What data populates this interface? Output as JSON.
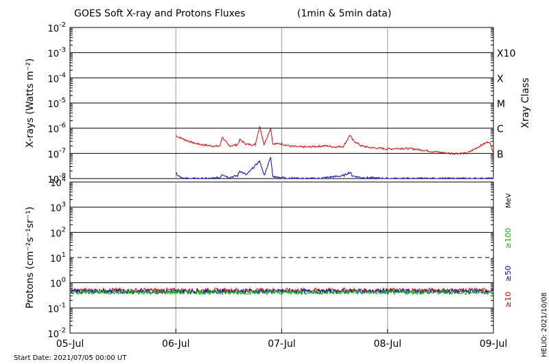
{
  "chart_data": [
    {
      "type": "line",
      "title": "GOES Soft X-ray and Protons Fluxes",
      "subtitle": "(1min & 5min data)",
      "ylabel": "X-rays (Watts m⁻²)",
      "y_scale": "log",
      "ylim": [
        1e-08,
        0.01
      ],
      "y_ticks": [
        {
          "base": "10",
          "exp": "-2"
        },
        {
          "base": "10",
          "exp": "-3"
        },
        {
          "base": "10",
          "exp": "-4"
        },
        {
          "base": "10",
          "exp": "-5"
        },
        {
          "base": "10",
          "exp": "-6"
        },
        {
          "base": "10",
          "exp": "-7"
        },
        {
          "base": "10",
          "exp": "-8"
        }
      ],
      "right_axis_label": "Xray Class",
      "classes": [
        {
          "label": "X10",
          "value": 0.001
        },
        {
          "label": "X",
          "value": 0.0001
        },
        {
          "label": "M",
          "value": 1e-05
        },
        {
          "label": "C",
          "value": 1e-06
        },
        {
          "label": "B",
          "value": 1e-07
        }
      ],
      "grid": true,
      "series": [
        {
          "color": "#dd0000",
          "x": [
            "2021-07-06T00:00",
            "2021-07-06T02:00",
            "2021-07-06T04:00",
            "2021-07-06T06:00",
            "2021-07-06T08:00",
            "2021-07-06T10:00",
            "2021-07-06T10:30",
            "2021-07-06T12:00",
            "2021-07-06T14:00",
            "2021-07-06T14:30",
            "2021-07-06T16:00",
            "2021-07-06T18:00",
            "2021-07-06T19:00",
            "2021-07-06T20:00",
            "2021-07-06T21:30",
            "2021-07-06T22:00",
            "2021-07-07T00:00",
            "2021-07-07T02:00",
            "2021-07-07T04:00",
            "2021-07-07T06:00",
            "2021-07-07T08:00",
            "2021-07-07T10:00",
            "2021-07-07T12:00",
            "2021-07-07T14:00",
            "2021-07-07T15:30",
            "2021-07-07T16:00",
            "2021-07-07T18:00",
            "2021-07-07T20:00",
            "2021-07-08T00:00",
            "2021-07-08T03:00",
            "2021-07-08T06:00",
            "2021-07-08T10:00",
            "2021-07-08T14:00",
            "2021-07-08T18:00",
            "2021-07-08T21:00",
            "2021-07-08T23:00",
            "2021-07-09T00:00"
          ],
          "values": [
            5e-07,
            3.5e-07,
            2.6e-07,
            2.2e-07,
            2e-07,
            1.9e-07,
            4.5e-07,
            2e-07,
            2.2e-07,
            3.5e-07,
            2.3e-07,
            2.2e-07,
            1.2e-06,
            2.3e-07,
            1e-06,
            2.4e-07,
            2.4e-07,
            1.9e-07,
            1.8e-07,
            1.8e-07,
            1.9e-07,
            2e-07,
            1.8e-07,
            1.9e-07,
            5.5e-07,
            3.5e-07,
            2e-07,
            1.7e-07,
            1.5e-07,
            1.6e-07,
            1.5e-07,
            1.2e-07,
            1e-07,
            1e-07,
            2e-07,
            3e-07,
            1.1e-07
          ]
        },
        {
          "color": "#0000cc",
          "x": [
            "2021-07-06T00:00",
            "2021-07-06T01:00",
            "2021-07-06T02:00",
            "2021-07-06T04:00",
            "2021-07-06T06:00",
            "2021-07-06T08:00",
            "2021-07-06T10:00",
            "2021-07-06T10:30",
            "2021-07-06T12:00",
            "2021-07-06T14:00",
            "2021-07-06T14:30",
            "2021-07-06T16:00",
            "2021-07-06T19:00",
            "2021-07-06T20:00",
            "2021-07-06T21:30",
            "2021-07-06T22:00",
            "2021-07-07T00:00",
            "2021-07-07T04:00",
            "2021-07-07T08:00",
            "2021-07-07T12:00",
            "2021-07-07T14:00",
            "2021-07-07T15:30",
            "2021-07-07T16:00",
            "2021-07-07T18:00",
            "2021-07-08T00:00",
            "2021-07-08T06:00",
            "2021-07-08T12:00",
            "2021-07-08T18:00",
            "2021-07-09T00:00"
          ],
          "values": [
            1.6e-08,
            1.2e-08,
            1e-08,
            1e-08,
            1e-08,
            1e-08,
            1.1e-08,
            1.5e-08,
            1.1e-08,
            1.3e-08,
            2e-08,
            1.4e-08,
            5e-08,
            1.3e-08,
            7e-08,
            1.2e-08,
            1.1e-08,
            1e-08,
            1e-08,
            1.2e-08,
            1.3e-08,
            1.8e-08,
            1.3e-08,
            1.1e-08,
            1e-08,
            1e-08,
            1e-08,
            1e-08,
            1e-08
          ]
        }
      ]
    },
    {
      "type": "line",
      "ylabel": "Protons (cm⁻²s⁻¹sr⁻¹)",
      "y_scale": "log",
      "ylim": [
        0.01,
        10000
      ],
      "y_ticks": [
        {
          "base": "10",
          "exp": "4"
        },
        {
          "base": "10",
          "exp": "3"
        },
        {
          "base": "10",
          "exp": "2"
        },
        {
          "base": "10",
          "exp": "1"
        },
        {
          "base": "10",
          "exp": "0"
        },
        {
          "base": "10",
          "exp": "-1"
        },
        {
          "base": "10",
          "exp": "-2"
        }
      ],
      "threshold": {
        "value": 10,
        "style": "dashed"
      },
      "grid": true,
      "x_ticks": [
        "05-Jul",
        "06-Jul",
        "07-Jul",
        "08-Jul",
        "09-Jul"
      ],
      "xlim": [
        "2021-07-05T00:00",
        "2021-07-09T00:00"
      ],
      "units_label": "MeV",
      "series": [
        {
          "name": "≥10",
          "color": "#dd0000",
          "x": [
            "2021-07-05T00:00",
            "2021-07-09T00:00"
          ],
          "values": [
            0.5,
            0.5
          ]
        },
        {
          "name": "≥50",
          "color": "#0000cc",
          "x": [
            "2021-07-05T00:00",
            "2021-07-09T00:00"
          ],
          "values": [
            0.45,
            0.45
          ]
        },
        {
          "name": "≥100",
          "color": "#00bb00",
          "x": [
            "2021-07-05T00:00",
            "2021-07-09T00:00"
          ],
          "values": [
            0.42,
            0.42
          ]
        }
      ]
    }
  ],
  "footer": {
    "start_date": "Start Date: 2021/07/05 00:00 UT",
    "credit": "HELIO: 2021/10/08"
  }
}
